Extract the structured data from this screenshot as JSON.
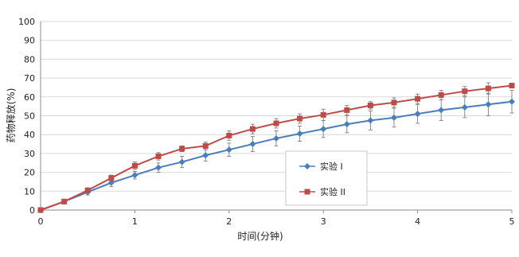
{
  "chart_data": {
    "type": "line",
    "xlabel": "时间(分钟)",
    "ylabel": "药物释放(%)",
    "xlim": [
      0,
      5
    ],
    "ylim": [
      0,
      100
    ],
    "x_ticks": [
      "0",
      "1",
      "2",
      "3",
      "4",
      "5"
    ],
    "y_ticks": [
      "0",
      "10",
      "20",
      "30",
      "40",
      "50",
      "60",
      "70",
      "80",
      "90",
      "100"
    ],
    "grid": "horizontal",
    "legend_position": "center-right",
    "x": [
      0,
      0.25,
      0.5,
      0.75,
      1,
      1.25,
      1.5,
      1.75,
      2,
      2.25,
      2.5,
      2.75,
      3,
      3.25,
      3.5,
      3.75,
      4,
      4.25,
      4.5,
      4.75,
      5
    ],
    "series": [
      {
        "name": "实验 I",
        "color": "#4a7ebb",
        "marker": "diamond",
        "values": [
          0,
          4.5,
          9.5,
          14.5,
          18.5,
          22.5,
          25.5,
          29,
          32,
          35,
          38,
          40.5,
          43,
          45.5,
          47.5,
          49,
          51,
          53,
          54.5,
          56,
          57.5
        ],
        "errors": [
          0,
          1,
          1.5,
          2,
          2,
          2.5,
          3,
          3,
          3.5,
          4,
          4,
          4,
          4.5,
          4.5,
          5,
          5,
          5,
          5.5,
          5.5,
          6,
          6
        ]
      },
      {
        "name": "实验 II",
        "color": "#be4b48",
        "marker": "square",
        "values": [
          0,
          4.5,
          10.5,
          17,
          23.5,
          28.5,
          32.5,
          34,
          39.5,
          43,
          46,
          48.5,
          50.5,
          53,
          55.5,
          57,
          59,
          61,
          63,
          64.5,
          66
        ],
        "errors": [
          0,
          1,
          1,
          1.5,
          2,
          2,
          1.5,
          2,
          2.5,
          2.5,
          2.5,
          2.5,
          3,
          2.5,
          2,
          2.5,
          2.5,
          2.5,
          2.5,
          3,
          1
        ]
      }
    ]
  }
}
